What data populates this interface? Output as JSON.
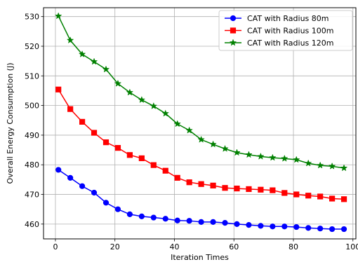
{
  "chart_data": {
    "type": "line",
    "xlabel": "Iteration Times",
    "ylabel": "Overall Energy Consumption (J)",
    "xlim": [
      -4,
      101
    ],
    "ylim": [
      455,
      533
    ],
    "xticks": [
      0,
      20,
      40,
      60,
      80,
      100
    ],
    "yticks": [
      460,
      470,
      480,
      490,
      500,
      510,
      520,
      530
    ],
    "grid": true,
    "legend_position": "top-right",
    "x": [
      1,
      5,
      9,
      13,
      17,
      21,
      25,
      29,
      33,
      37,
      41,
      45,
      49,
      53,
      57,
      61,
      65,
      69,
      73,
      77,
      81,
      85,
      89,
      93,
      97
    ],
    "series": [
      {
        "name": "CAT with Radius 80m",
        "color": "#0000ff",
        "marker": "circle",
        "values": [
          478.3,
          475.6,
          472.8,
          470.6,
          467.2,
          465.0,
          463.3,
          462.6,
          462.2,
          461.8,
          461.2,
          461.1,
          460.7,
          460.7,
          460.4,
          460.0,
          459.7,
          459.4,
          459.2,
          459.2,
          459.0,
          458.7,
          458.5,
          458.3,
          458.3
        ]
      },
      {
        "name": "CAT with Radius 100m",
        "color": "#ff0000",
        "marker": "square",
        "values": [
          505.4,
          498.8,
          494.5,
          490.8,
          487.6,
          485.7,
          483.3,
          482.2,
          479.9,
          478.0,
          475.6,
          474.1,
          473.5,
          473.0,
          472.2,
          472.0,
          471.8,
          471.6,
          471.4,
          470.5,
          470.0,
          469.6,
          469.3,
          468.6,
          468.4
        ]
      },
      {
        "name": "CAT with Radius 120m",
        "color": "#008000",
        "marker": "star",
        "values": [
          530.2,
          522.0,
          517.3,
          514.8,
          512.2,
          507.4,
          504.4,
          501.9,
          499.8,
          497.3,
          493.8,
          491.6,
          488.5,
          486.9,
          485.4,
          484.1,
          483.4,
          482.8,
          482.4,
          482.1,
          481.7,
          480.5,
          479.8,
          479.5,
          478.9
        ]
      }
    ]
  }
}
